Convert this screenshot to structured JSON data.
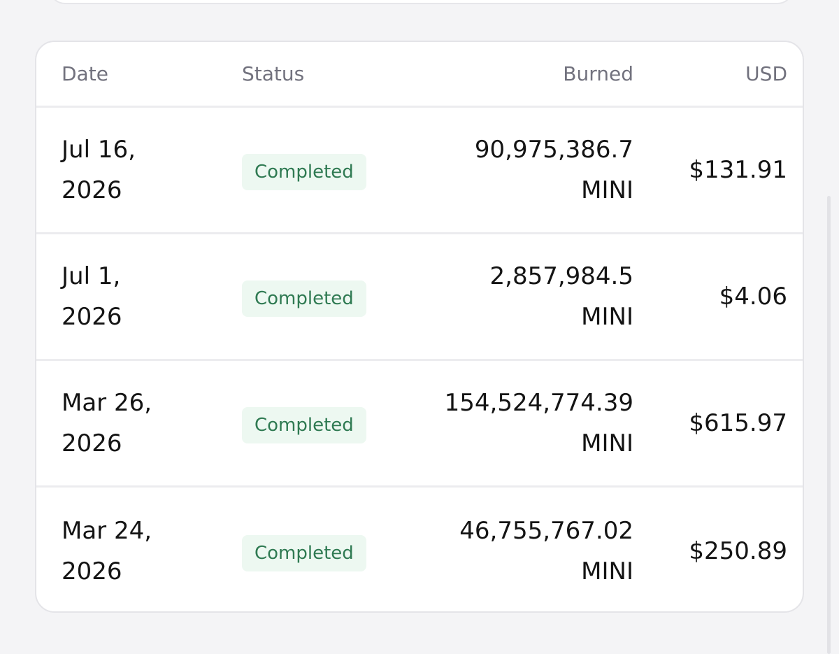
{
  "table": {
    "headers": [
      "Date",
      "Status",
      "Burned",
      "USD"
    ],
    "rows": [
      [
        "Jul 16, 2026",
        "Completed",
        "90,975,386.7 MINI",
        "$131.91"
      ],
      [
        "Jul 1, 2026",
        "Completed",
        "2,857,984.5 MINI",
        "$4.06"
      ],
      [
        "Mar 26, 2026",
        "Completed",
        "154,524,774.39 MINI",
        "$615.97"
      ],
      [
        "Mar 24, 2026",
        "Completed",
        "46,755,767.02 MINI",
        "$250.89"
      ]
    ]
  }
}
